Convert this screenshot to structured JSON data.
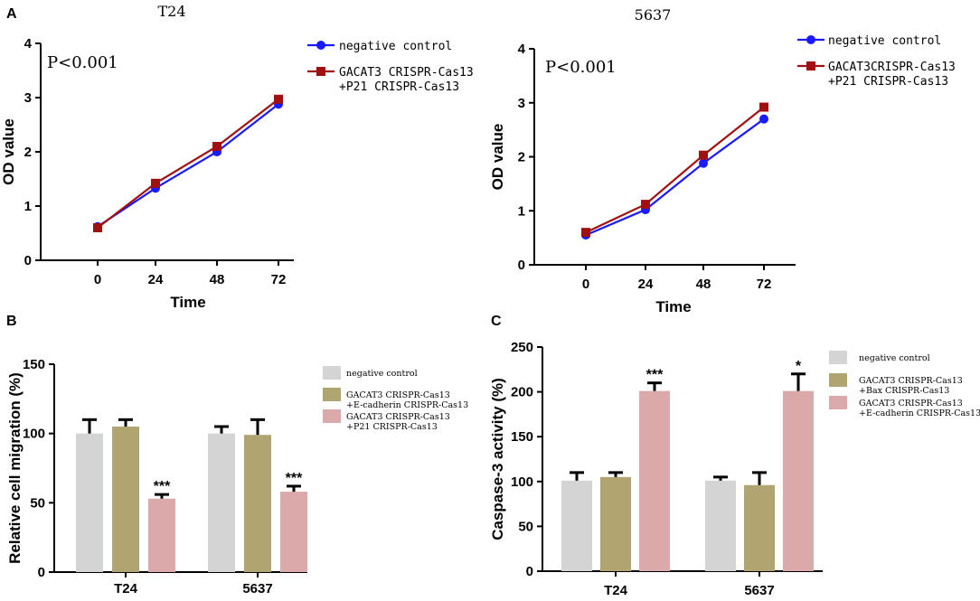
{
  "chart_data": [
    {
      "id": "A1",
      "type": "line",
      "panel_label": "A",
      "title": "T24",
      "annotation": "P<0.001",
      "xlabel": "Time",
      "ylabel": "OD value",
      "x": [
        0,
        24,
        48,
        72
      ],
      "x_tick_labels": [
        "0",
        "24",
        "48",
        "72"
      ],
      "ylim": [
        0,
        4
      ],
      "y_ticks": [
        0,
        1,
        2,
        3,
        4
      ],
      "series": [
        {
          "name": "negative control",
          "legend_lines": [
            "negative control"
          ],
          "color": "#1a1aff",
          "marker": "circle",
          "values": [
            0.62,
            1.33,
            2.0,
            2.88
          ]
        },
        {
          "name": "GACAT3 CRISPR-Cas13 +P21 CRISPR-Cas13",
          "legend_lines": [
            "GACAT3 CRISPR-Cas13",
            "+P21 CRISPR-Cas13"
          ],
          "color": "#a01010",
          "marker": "square",
          "values": [
            0.6,
            1.42,
            2.1,
            2.97
          ]
        }
      ]
    },
    {
      "id": "A2",
      "type": "line",
      "title": "5637",
      "annotation": "P<0.001",
      "xlabel": "Time",
      "ylabel": "OD value",
      "x": [
        0,
        24,
        48,
        72
      ],
      "x_tick_labels": [
        "0",
        "24",
        "48",
        "72"
      ],
      "ylim": [
        0,
        4
      ],
      "y_ticks": [
        0,
        1,
        2,
        3,
        4
      ],
      "series": [
        {
          "name": "negative control",
          "legend_lines": [
            "negative control"
          ],
          "color": "#1a1aff",
          "marker": "circle",
          "values": [
            0.55,
            1.02,
            1.88,
            2.7
          ]
        },
        {
          "name": "GACAT3CRISPR-Cas13 +P21 CRISPR-Cas13",
          "legend_lines": [
            "GACAT3CRISPR-Cas13",
            "+P21 CRISPR-Cas13"
          ],
          "color": "#a01010",
          "marker": "square",
          "values": [
            0.6,
            1.12,
            2.03,
            2.92
          ]
        }
      ]
    },
    {
      "id": "B",
      "type": "bar",
      "panel_label": "B",
      "ylabel": "Relative cell migration (%)",
      "categories": [
        "T24",
        "5637"
      ],
      "ylim": [
        0,
        150
      ],
      "y_ticks": [
        0,
        50,
        100,
        150
      ],
      "series": [
        {
          "name": "negative control",
          "legend_lines": [
            "negative control"
          ],
          "color": "#d4d4d4",
          "values": [
            100,
            100
          ],
          "errors": [
            10,
            5
          ],
          "significance": [
            "",
            ""
          ]
        },
        {
          "name": "GACAT3 CRISPR-Cas13 +E-cadherin CRISPR-Cas13",
          "legend_lines": [
            "GACAT3 CRISPR-Cas13",
            "+E-cadherin CRISPR-Cas13"
          ],
          "color": "#b0a470",
          "values": [
            105,
            99
          ],
          "errors": [
            5,
            11
          ],
          "significance": [
            "",
            ""
          ]
        },
        {
          "name": "GACAT3 CRISPR-Cas13 +P21 CRISPR-Cas13",
          "legend_lines": [
            "GACAT3 CRISPR-Cas13",
            "+P21 CRISPR-Cas13"
          ],
          "color": "#dba9a9",
          "values": [
            53,
            58
          ],
          "errors": [
            3,
            4
          ],
          "significance": [
            "***",
            "***"
          ]
        }
      ]
    },
    {
      "id": "C",
      "type": "bar",
      "panel_label": "C",
      "ylabel": "Caspase-3 activity (%)",
      "categories": [
        "T24",
        "5637"
      ],
      "ylim": [
        0,
        250
      ],
      "y_ticks": [
        0,
        50,
        100,
        150,
        200,
        250
      ],
      "series": [
        {
          "name": "negative control",
          "legend_lines": [
            "negative control"
          ],
          "color": "#d4d4d4",
          "values": [
            101,
            101
          ],
          "errors": [
            9,
            4
          ],
          "significance": [
            "",
            ""
          ]
        },
        {
          "name": "GACAT3 CRISPR-Cas13 +Bax CRISPR-Cas13",
          "legend_lines": [
            "GACAT3 CRISPR-Cas13",
            "+Bax CRISPR-Cas13"
          ],
          "color": "#b0a470",
          "values": [
            105,
            96
          ],
          "errors": [
            5,
            14
          ],
          "significance": [
            "",
            ""
          ]
        },
        {
          "name": "GACAT3 CRISPR-Cas13 +E-cadherin CRISPR-Cas13",
          "legend_lines": [
            "GACAT3 CRISPR-Cas13",
            "+E-cadherin CRISPR-Cas13"
          ],
          "color": "#dba9a9",
          "values": [
            201,
            201
          ],
          "errors": [
            9,
            19
          ],
          "significance": [
            "***",
            "*"
          ]
        }
      ]
    }
  ]
}
